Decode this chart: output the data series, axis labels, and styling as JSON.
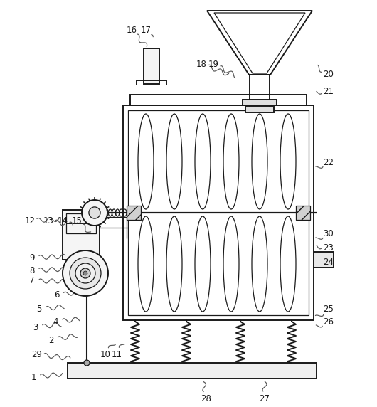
{
  "figure_width": 5.3,
  "figure_height": 5.72,
  "dpi": 100,
  "bg_color": "#ffffff",
  "line_color": "#1a1a1a",
  "gray_fill": "#e0e0e0",
  "hatch_fill": "#c0c0c0"
}
